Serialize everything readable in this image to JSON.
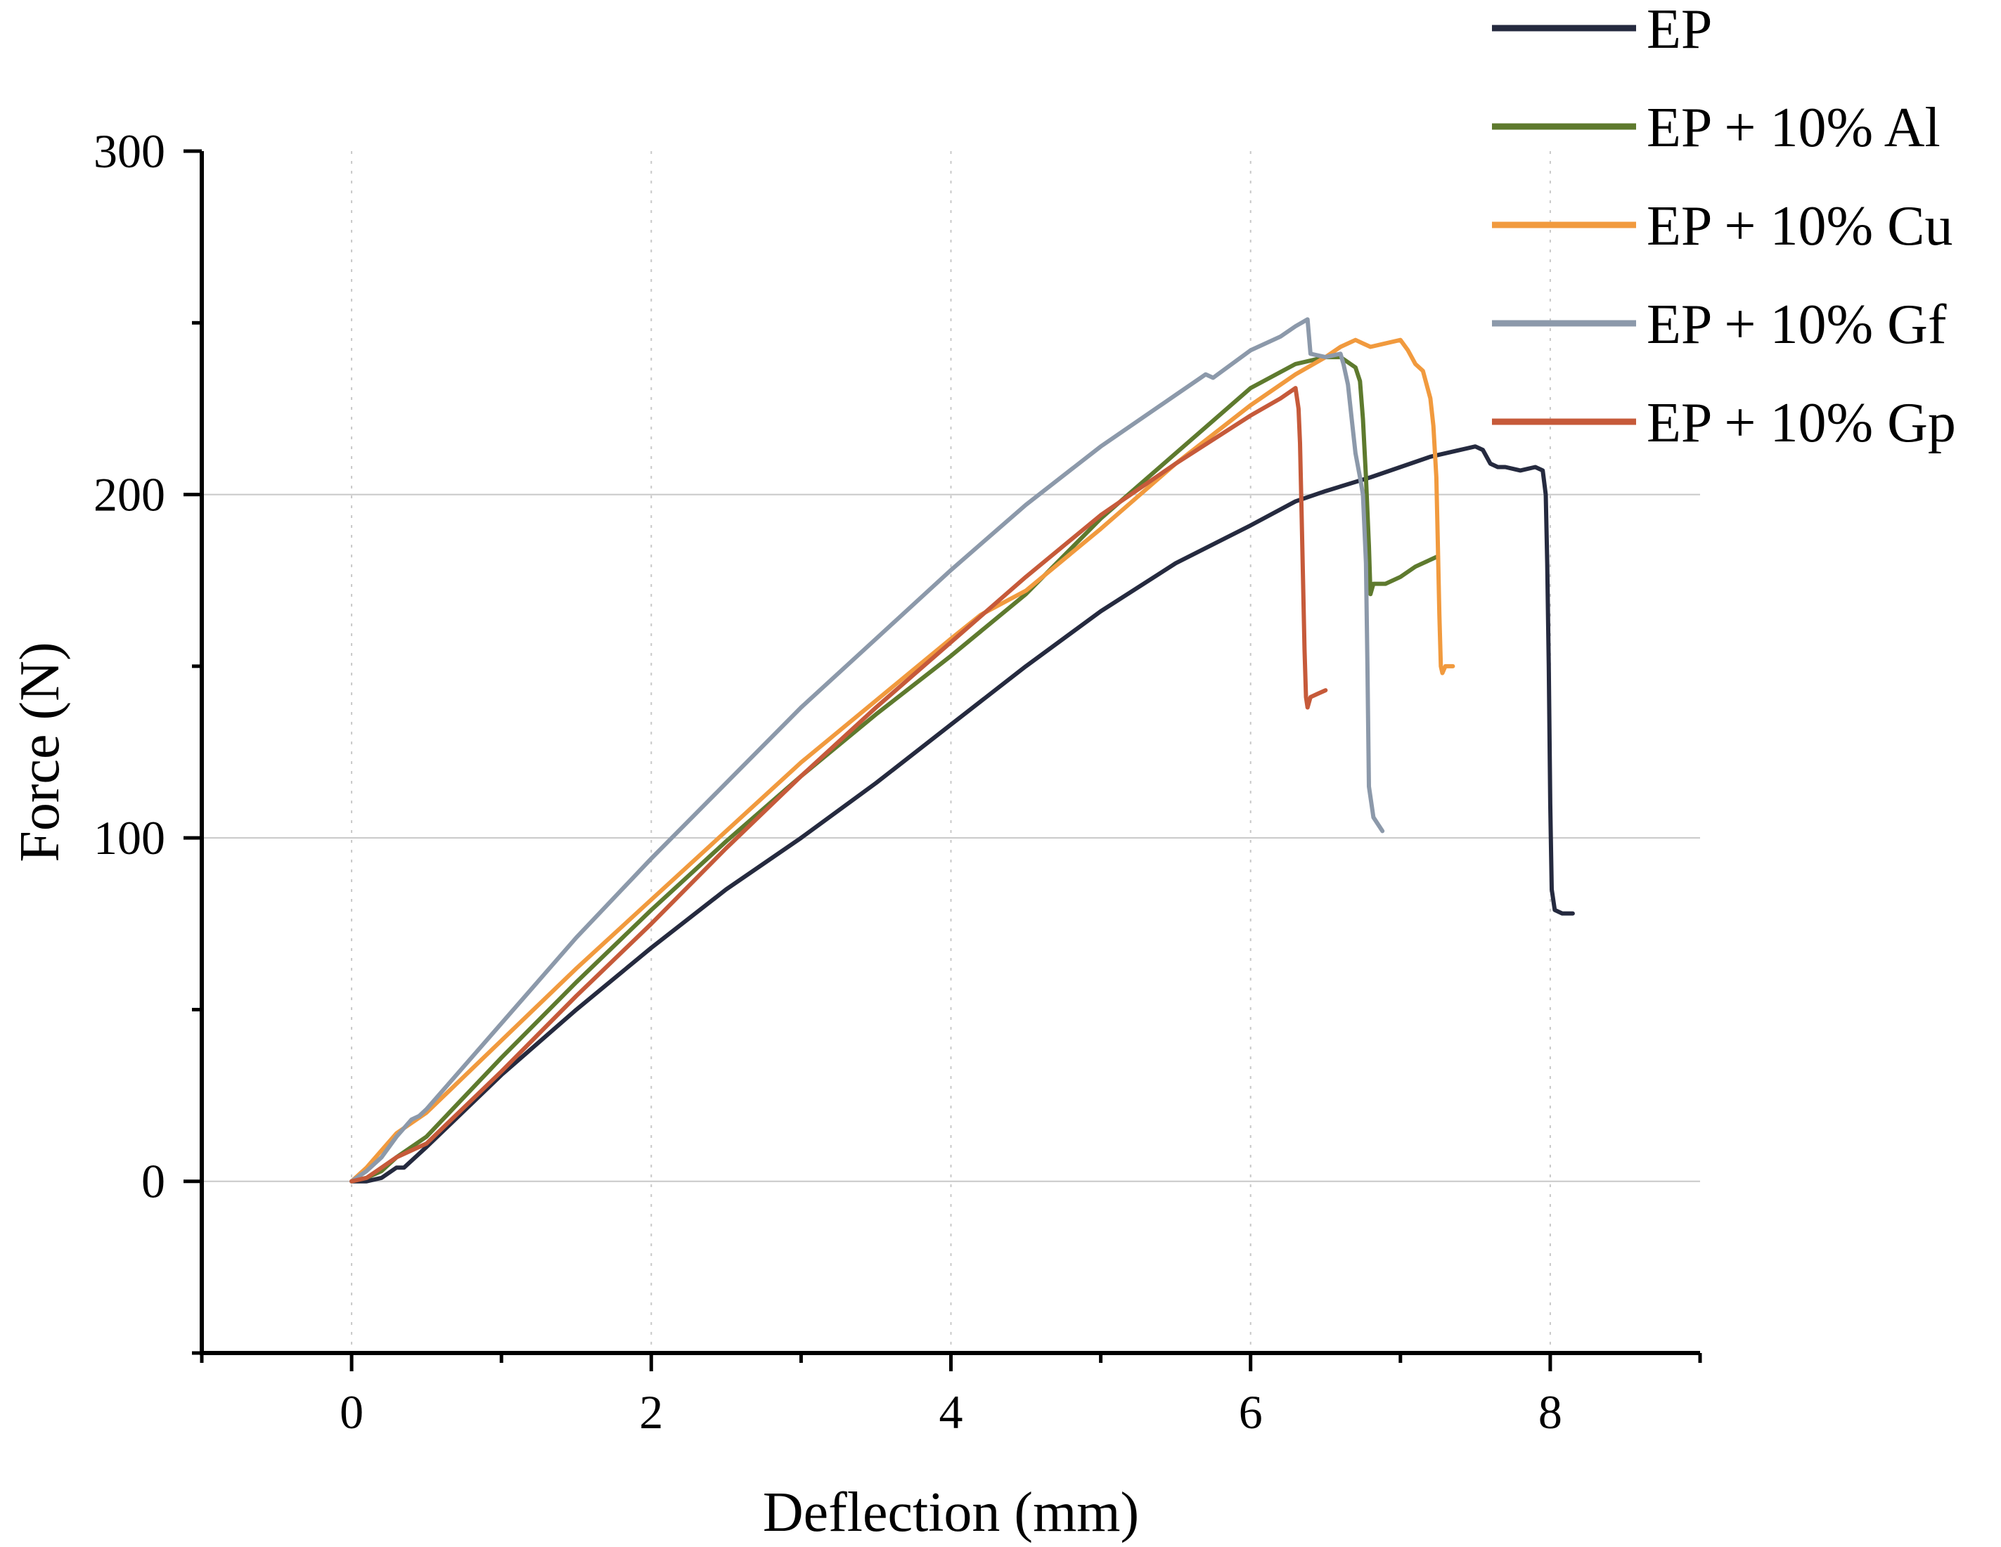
{
  "chart_data": {
    "type": "line",
    "title": "",
    "xlabel": "Deflection (mm)",
    "ylabel": "Force (N)",
    "xlim": [
      -1,
      9
    ],
    "ylim": [
      -50,
      300
    ],
    "x_ticks_major": [
      0,
      2,
      4,
      6,
      8
    ],
    "x_ticks_minor": [
      -1,
      1,
      3,
      5,
      7,
      9
    ],
    "y_ticks_major": [
      0,
      100,
      200,
      300
    ],
    "y_ticks_minor": [
      -50,
      50,
      150,
      250
    ],
    "x_tick_labels": [
      "0",
      "2",
      "4",
      "6",
      "8"
    ],
    "y_tick_labels": [
      "0",
      "100",
      "200",
      "300"
    ],
    "grid": {
      "horizontal": "solid",
      "vertical": "dotted"
    },
    "legend_position": "top-right",
    "series": [
      {
        "name": "EP",
        "color": "#252a3f",
        "points": [
          [
            0,
            0
          ],
          [
            0.1,
            0
          ],
          [
            0.2,
            1
          ],
          [
            0.3,
            4
          ],
          [
            0.35,
            4
          ],
          [
            0.4,
            6
          ],
          [
            0.5,
            10
          ],
          [
            1,
            31
          ],
          [
            1.5,
            50
          ],
          [
            2,
            68
          ],
          [
            2.5,
            85
          ],
          [
            3,
            100
          ],
          [
            3.5,
            116
          ],
          [
            4,
            133
          ],
          [
            4.5,
            150
          ],
          [
            5,
            166
          ],
          [
            5.5,
            180
          ],
          [
            6,
            191
          ],
          [
            6.3,
            198
          ],
          [
            6.5,
            201
          ],
          [
            6.8,
            205
          ],
          [
            7,
            208
          ],
          [
            7.2,
            211
          ],
          [
            7.4,
            213
          ],
          [
            7.5,
            214
          ],
          [
            7.55,
            213
          ],
          [
            7.6,
            209
          ],
          [
            7.65,
            208
          ],
          [
            7.7,
            208
          ],
          [
            7.8,
            207
          ],
          [
            7.9,
            208
          ],
          [
            7.95,
            207
          ],
          [
            7.97,
            200
          ],
          [
            7.98,
            180
          ],
          [
            7.99,
            150
          ],
          [
            8,
            110
          ],
          [
            8.01,
            85
          ],
          [
            8.03,
            79
          ],
          [
            8.08,
            78
          ],
          [
            8.15,
            78
          ]
        ]
      },
      {
        "name": "EP + 10% Al",
        "color": "#5e7a2e",
        "points": [
          [
            0,
            0
          ],
          [
            0.1,
            1
          ],
          [
            0.2,
            3
          ],
          [
            0.3,
            7
          ],
          [
            0.5,
            13
          ],
          [
            1,
            36
          ],
          [
            1.5,
            58
          ],
          [
            2,
            79
          ],
          [
            2.5,
            99
          ],
          [
            3,
            118
          ],
          [
            3.5,
            136
          ],
          [
            4,
            153
          ],
          [
            4.5,
            171
          ],
          [
            5,
            193
          ],
          [
            5.5,
            212
          ],
          [
            6,
            231
          ],
          [
            6.3,
            238
          ],
          [
            6.5,
            240
          ],
          [
            6.6,
            240
          ],
          [
            6.7,
            237
          ],
          [
            6.73,
            233
          ],
          [
            6.75,
            222
          ],
          [
            6.77,
            205
          ],
          [
            6.79,
            185
          ],
          [
            6.8,
            171
          ],
          [
            6.82,
            174
          ],
          [
            6.9,
            174
          ],
          [
            7,
            176
          ],
          [
            7.1,
            179
          ],
          [
            7.2,
            181
          ],
          [
            7.25,
            182
          ]
        ]
      },
      {
        "name": "EP + 10% Cu",
        "color": "#f19a3e",
        "points": [
          [
            0,
            0
          ],
          [
            0.1,
            4
          ],
          [
            0.2,
            9
          ],
          [
            0.3,
            14
          ],
          [
            0.5,
            20
          ],
          [
            1,
            41
          ],
          [
            1.5,
            62
          ],
          [
            2,
            82
          ],
          [
            2.5,
            102
          ],
          [
            3,
            122
          ],
          [
            3.5,
            140
          ],
          [
            4,
            158
          ],
          [
            4.2,
            165
          ],
          [
            4.5,
            172
          ],
          [
            5,
            190
          ],
          [
            5.5,
            209
          ],
          [
            6,
            226
          ],
          [
            6.3,
            235
          ],
          [
            6.5,
            240
          ],
          [
            6.6,
            243
          ],
          [
            6.7,
            245
          ],
          [
            6.75,
            244
          ],
          [
            6.8,
            243
          ],
          [
            6.9,
            244
          ],
          [
            7,
            245
          ],
          [
            7.05,
            242
          ],
          [
            7.1,
            238
          ],
          [
            7.15,
            236
          ],
          [
            7.2,
            228
          ],
          [
            7.22,
            220
          ],
          [
            7.24,
            205
          ],
          [
            7.25,
            185
          ],
          [
            7.26,
            165
          ],
          [
            7.27,
            150
          ],
          [
            7.28,
            148
          ],
          [
            7.3,
            150
          ],
          [
            7.35,
            150
          ]
        ]
      },
      {
        "name": "EP + 10% Gf",
        "color": "#8c99aa",
        "points": [
          [
            0,
            0
          ],
          [
            0.1,
            3
          ],
          [
            0.2,
            7
          ],
          [
            0.3,
            13
          ],
          [
            0.4,
            18
          ],
          [
            0.45,
            19
          ],
          [
            0.5,
            21
          ],
          [
            1,
            46
          ],
          [
            1.5,
            71
          ],
          [
            2,
            94
          ],
          [
            2.5,
            116
          ],
          [
            3,
            138
          ],
          [
            3.5,
            158
          ],
          [
            4,
            178
          ],
          [
            4.5,
            197
          ],
          [
            5,
            214
          ],
          [
            5.5,
            229
          ],
          [
            5.7,
            235
          ],
          [
            5.75,
            234
          ],
          [
            6,
            242
          ],
          [
            6.2,
            246
          ],
          [
            6.3,
            249
          ],
          [
            6.38,
            251
          ],
          [
            6.4,
            241
          ],
          [
            6.5,
            240
          ],
          [
            6.6,
            241
          ],
          [
            6.62,
            238
          ],
          [
            6.65,
            232
          ],
          [
            6.68,
            220
          ],
          [
            6.7,
            212
          ],
          [
            6.73,
            205
          ],
          [
            6.75,
            200
          ],
          [
            6.77,
            180
          ],
          [
            6.78,
            150
          ],
          [
            6.79,
            115
          ],
          [
            6.82,
            106
          ],
          [
            6.88,
            102
          ]
        ]
      },
      {
        "name": "EP + 10% Gp",
        "color": "#c65a3a",
        "points": [
          [
            0,
            0
          ],
          [
            0.1,
            1
          ],
          [
            0.2,
            4
          ],
          [
            0.3,
            7
          ],
          [
            0.5,
            11
          ],
          [
            1,
            32
          ],
          [
            1.5,
            54
          ],
          [
            2,
            75
          ],
          [
            2.5,
            97
          ],
          [
            3,
            118
          ],
          [
            3.5,
            138
          ],
          [
            4,
            157
          ],
          [
            4.5,
            176
          ],
          [
            5,
            194
          ],
          [
            5.5,
            209
          ],
          [
            6,
            223
          ],
          [
            6.2,
            228
          ],
          [
            6.3,
            231
          ],
          [
            6.32,
            225
          ],
          [
            6.33,
            215
          ],
          [
            6.34,
            195
          ],
          [
            6.35,
            175
          ],
          [
            6.36,
            155
          ],
          [
            6.37,
            141
          ],
          [
            6.38,
            138
          ],
          [
            6.4,
            141
          ],
          [
            6.45,
            142
          ],
          [
            6.5,
            143
          ]
        ]
      }
    ]
  }
}
